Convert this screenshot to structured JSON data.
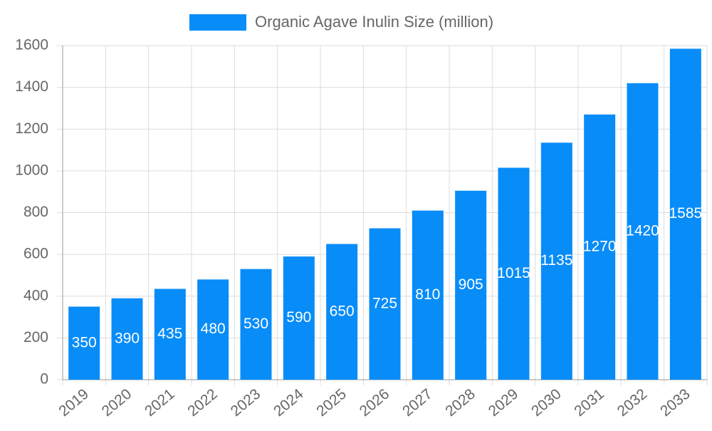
{
  "chart_data": {
    "type": "bar",
    "categories": [
      "2019",
      "2020",
      "2021",
      "2022",
      "2023",
      "2024",
      "2025",
      "2026",
      "2027",
      "2028",
      "2029",
      "2030",
      "2031",
      "2032",
      "2033"
    ],
    "series": [
      {
        "name": "Organic Agave Inulin Size (million)",
        "color": "#088cf8",
        "values": [
          350,
          390,
          435,
          480,
          530,
          590,
          650,
          725,
          810,
          905,
          1015,
          1135,
          1270,
          1420,
          1585
        ]
      }
    ],
    "ylim": [
      0,
      1600
    ],
    "yticks": [
      0,
      200,
      400,
      600,
      800,
      1000,
      1200,
      1400,
      1600
    ],
    "grid": true
  }
}
